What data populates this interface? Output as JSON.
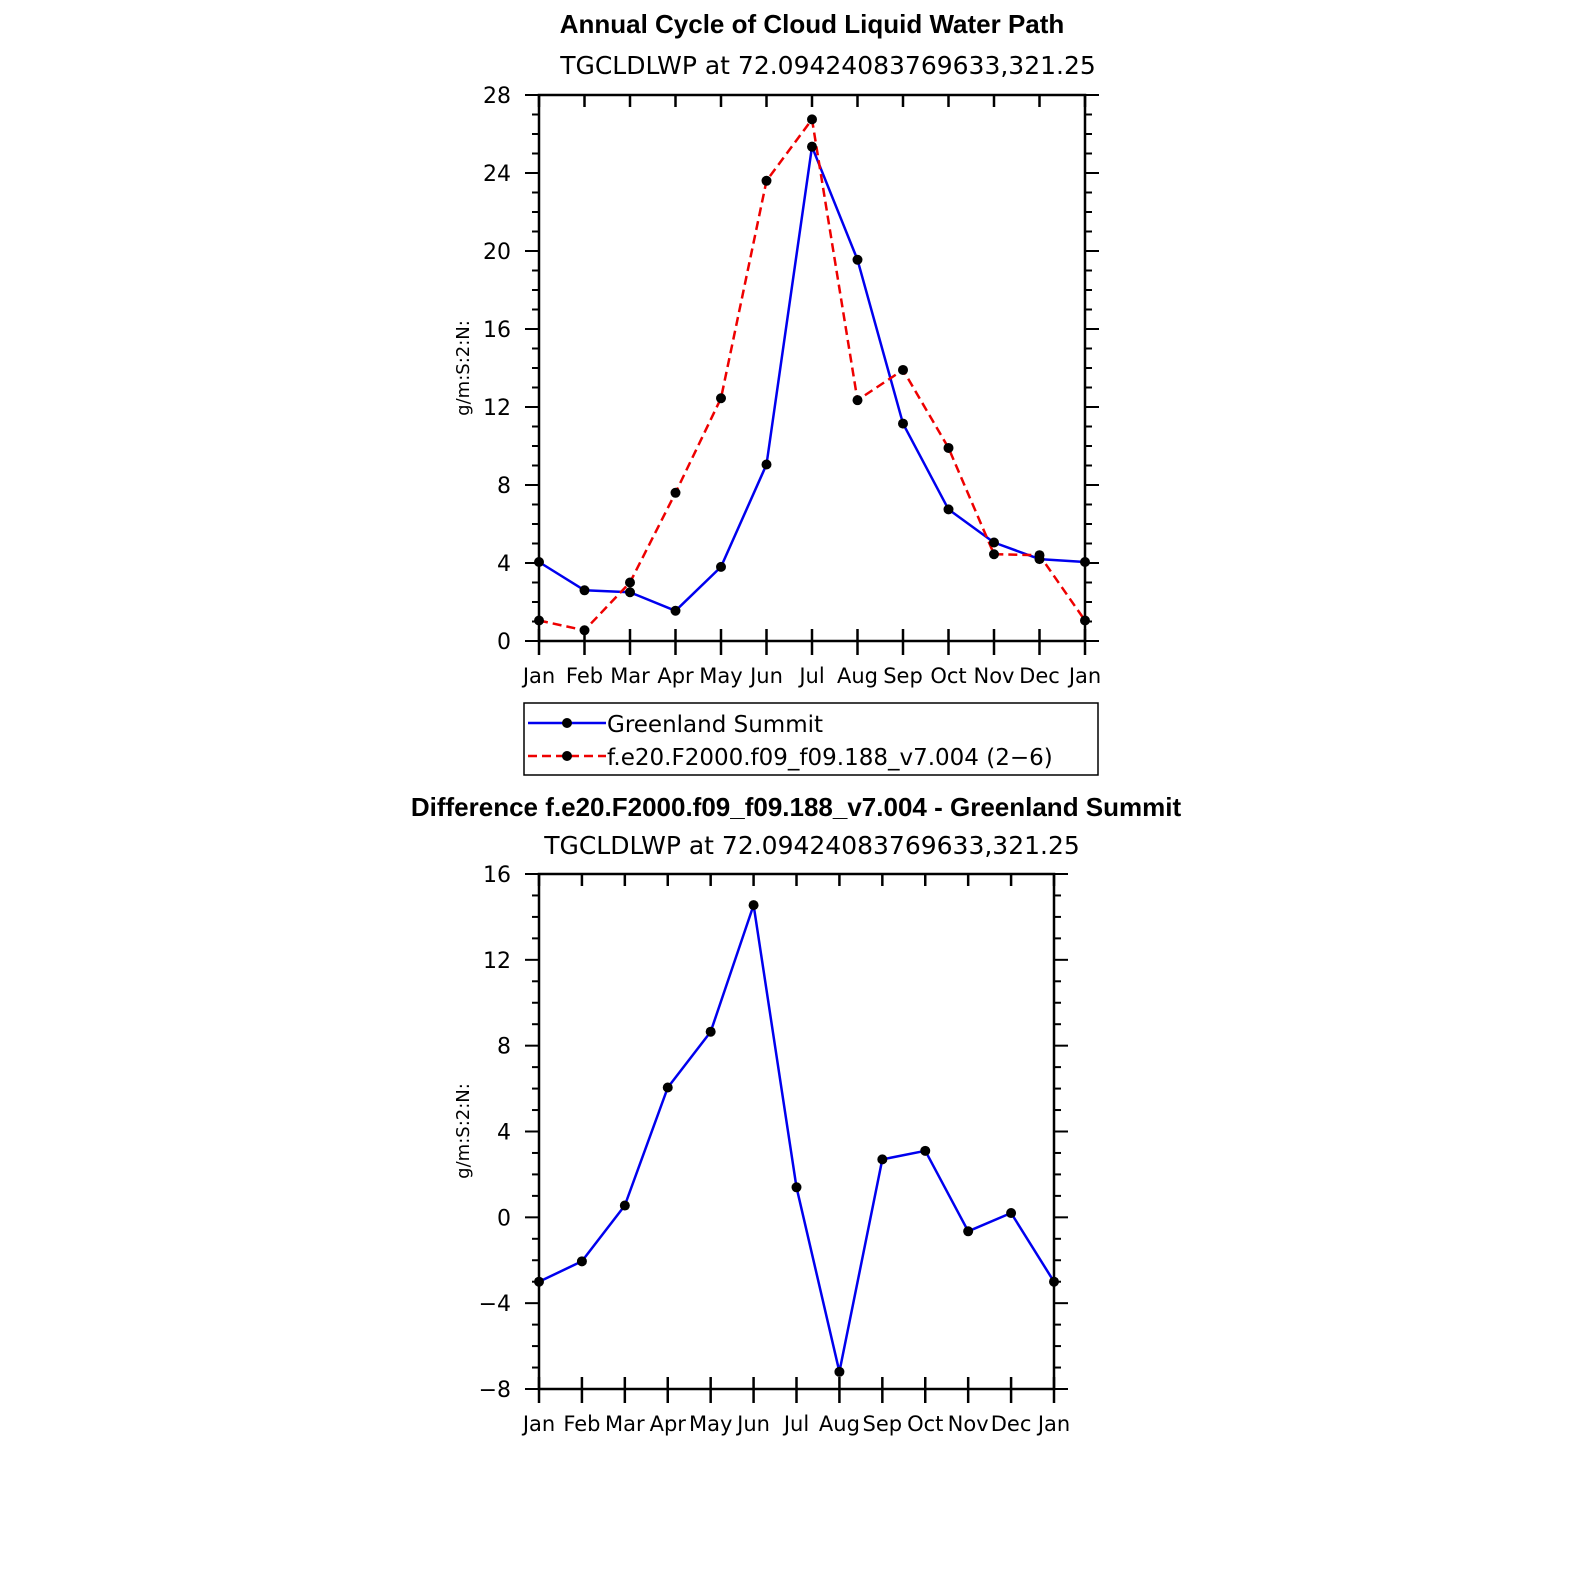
{
  "chart_data": [
    {
      "type": "line",
      "title": "Annual Cycle of Cloud Liquid Water Path",
      "subtitle": "TGCLDLWP  at  72.09424083769633,321.25",
      "ylabel": "g/m:S:2:N:",
      "xlabel": "",
      "categories": [
        "Jan",
        "Feb",
        "Mar",
        "Apr",
        "May",
        "Jun",
        "Jul",
        "Aug",
        "Sep",
        "Oct",
        "Nov",
        "Dec",
        "Jan"
      ],
      "ylim": [
        0,
        28
      ],
      "yticks": [
        0,
        4,
        8,
        12,
        16,
        20,
        24,
        28
      ],
      "yticks_labels": [
        "0",
        "4",
        "8",
        "12",
        "16",
        "20",
        "24",
        "28"
      ],
      "series": [
        {
          "name": "Greenland Summit",
          "color": "#0000ee",
          "dash": "solid",
          "values": [
            4.05,
            2.6,
            2.5,
            1.55,
            3.8,
            9.05,
            25.35,
            19.55,
            11.15,
            6.75,
            5.05,
            4.2,
            4.05
          ]
        },
        {
          "name": "f.e20.F2000.f09_f09.188_v7.004 (2−6)",
          "color": "#ee0000",
          "dash": "dashed",
          "values": [
            1.05,
            0.55,
            3.0,
            7.6,
            12.45,
            23.6,
            26.75,
            12.35,
            13.9,
            9.9,
            4.45,
            4.4,
            1.05
          ]
        }
      ],
      "legend_position": "below"
    },
    {
      "type": "line",
      "title": "Difference f.e20.F2000.f09_f09.188_v7.004 - Greenland Summit",
      "subtitle": "TGCLDLWP  at  72.09424083769633,321.25",
      "ylabel": "g/m:S:2:N:",
      "xlabel": "",
      "categories": [
        "Jan",
        "Feb",
        "Mar",
        "Apr",
        "May",
        "Jun",
        "Jul",
        "Aug",
        "Sep",
        "Oct",
        "Nov",
        "Dec",
        "Jan"
      ],
      "ylim": [
        -8,
        16
      ],
      "yticks": [
        -8,
        -4,
        0,
        4,
        8,
        12,
        16
      ],
      "yticks_labels": [
        "−8",
        "−4",
        "0",
        "4",
        "8",
        "12",
        "16"
      ],
      "series": [
        {
          "name": "Difference",
          "color": "#0000ee",
          "dash": "solid",
          "values": [
            -3.0,
            -2.05,
            0.55,
            6.05,
            8.65,
            14.55,
            1.4,
            -7.2,
            2.7,
            3.1,
            -0.65,
            0.2,
            -3.0
          ]
        }
      ]
    }
  ]
}
